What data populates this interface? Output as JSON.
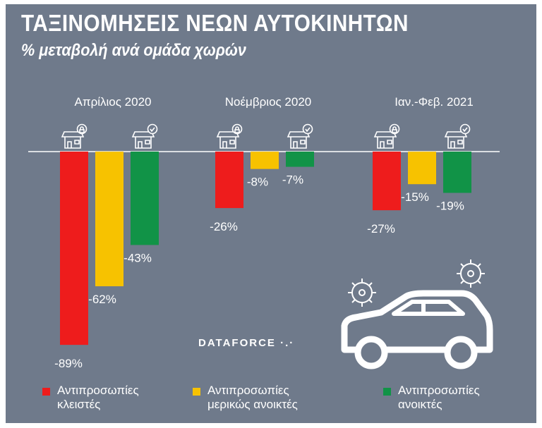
{
  "title": "ΤΑΞΙΝΟΜΗΣΕΙΣ ΝΕΩΝ ΑΥΤΟΚΙΝΗΤΩΝ",
  "subtitle": "% μεταβολή ανά ομάδα χωρών",
  "brand": "DATAFORCE",
  "colors": {
    "background": "#6f7a8b",
    "closed": "#ee1c1c",
    "partial": "#f7c200",
    "open": "#119347",
    "baseline": "#ffffff"
  },
  "legend": [
    {
      "key": "closed",
      "line1": "Αντιπροσωπίες",
      "line2": "κλειστές"
    },
    {
      "key": "partial",
      "line1": "Αντιπροσωπίες",
      "line2": "μερικώς ανοικτές"
    },
    {
      "key": "open",
      "line1": "Αντιπροσωπίες",
      "line2": "ανοικτές"
    }
  ],
  "chart_data": {
    "type": "bar",
    "title": "ΤΑΞΙΝΟΜΗΣΕΙΣ ΝΕΩΝ ΑΥΤΟΚΙΝΗΤΩΝ",
    "subtitle": "% μεταβολή ανά ομάδα χωρών",
    "categories": [
      "Απρίλιος 2020",
      "Νοέμβριος 2020",
      "Ιαν.-Φεβ. 2021"
    ],
    "series": [
      {
        "name": "Αντιπροσωπίες κλειστές",
        "key": "closed",
        "values": [
          -89,
          -26,
          -27
        ],
        "labels": [
          "-89%",
          "-26%",
          "-27%"
        ]
      },
      {
        "name": "Αντιπροσωπίες μερικώς ανοικτές",
        "key": "partial",
        "values": [
          -62,
          -8,
          -15
        ],
        "labels": [
          "-62%",
          "-8%",
          "-15%"
        ]
      },
      {
        "name": "Αντιπροσωπίες ανοικτές",
        "key": "open",
        "values": [
          -43,
          -7,
          -19
        ],
        "labels": [
          "-43%",
          "-7%",
          "-19%"
        ]
      }
    ],
    "ylim": [
      -100,
      0
    ],
    "xlabel": "",
    "ylabel": "",
    "legend_position": "bottom"
  }
}
